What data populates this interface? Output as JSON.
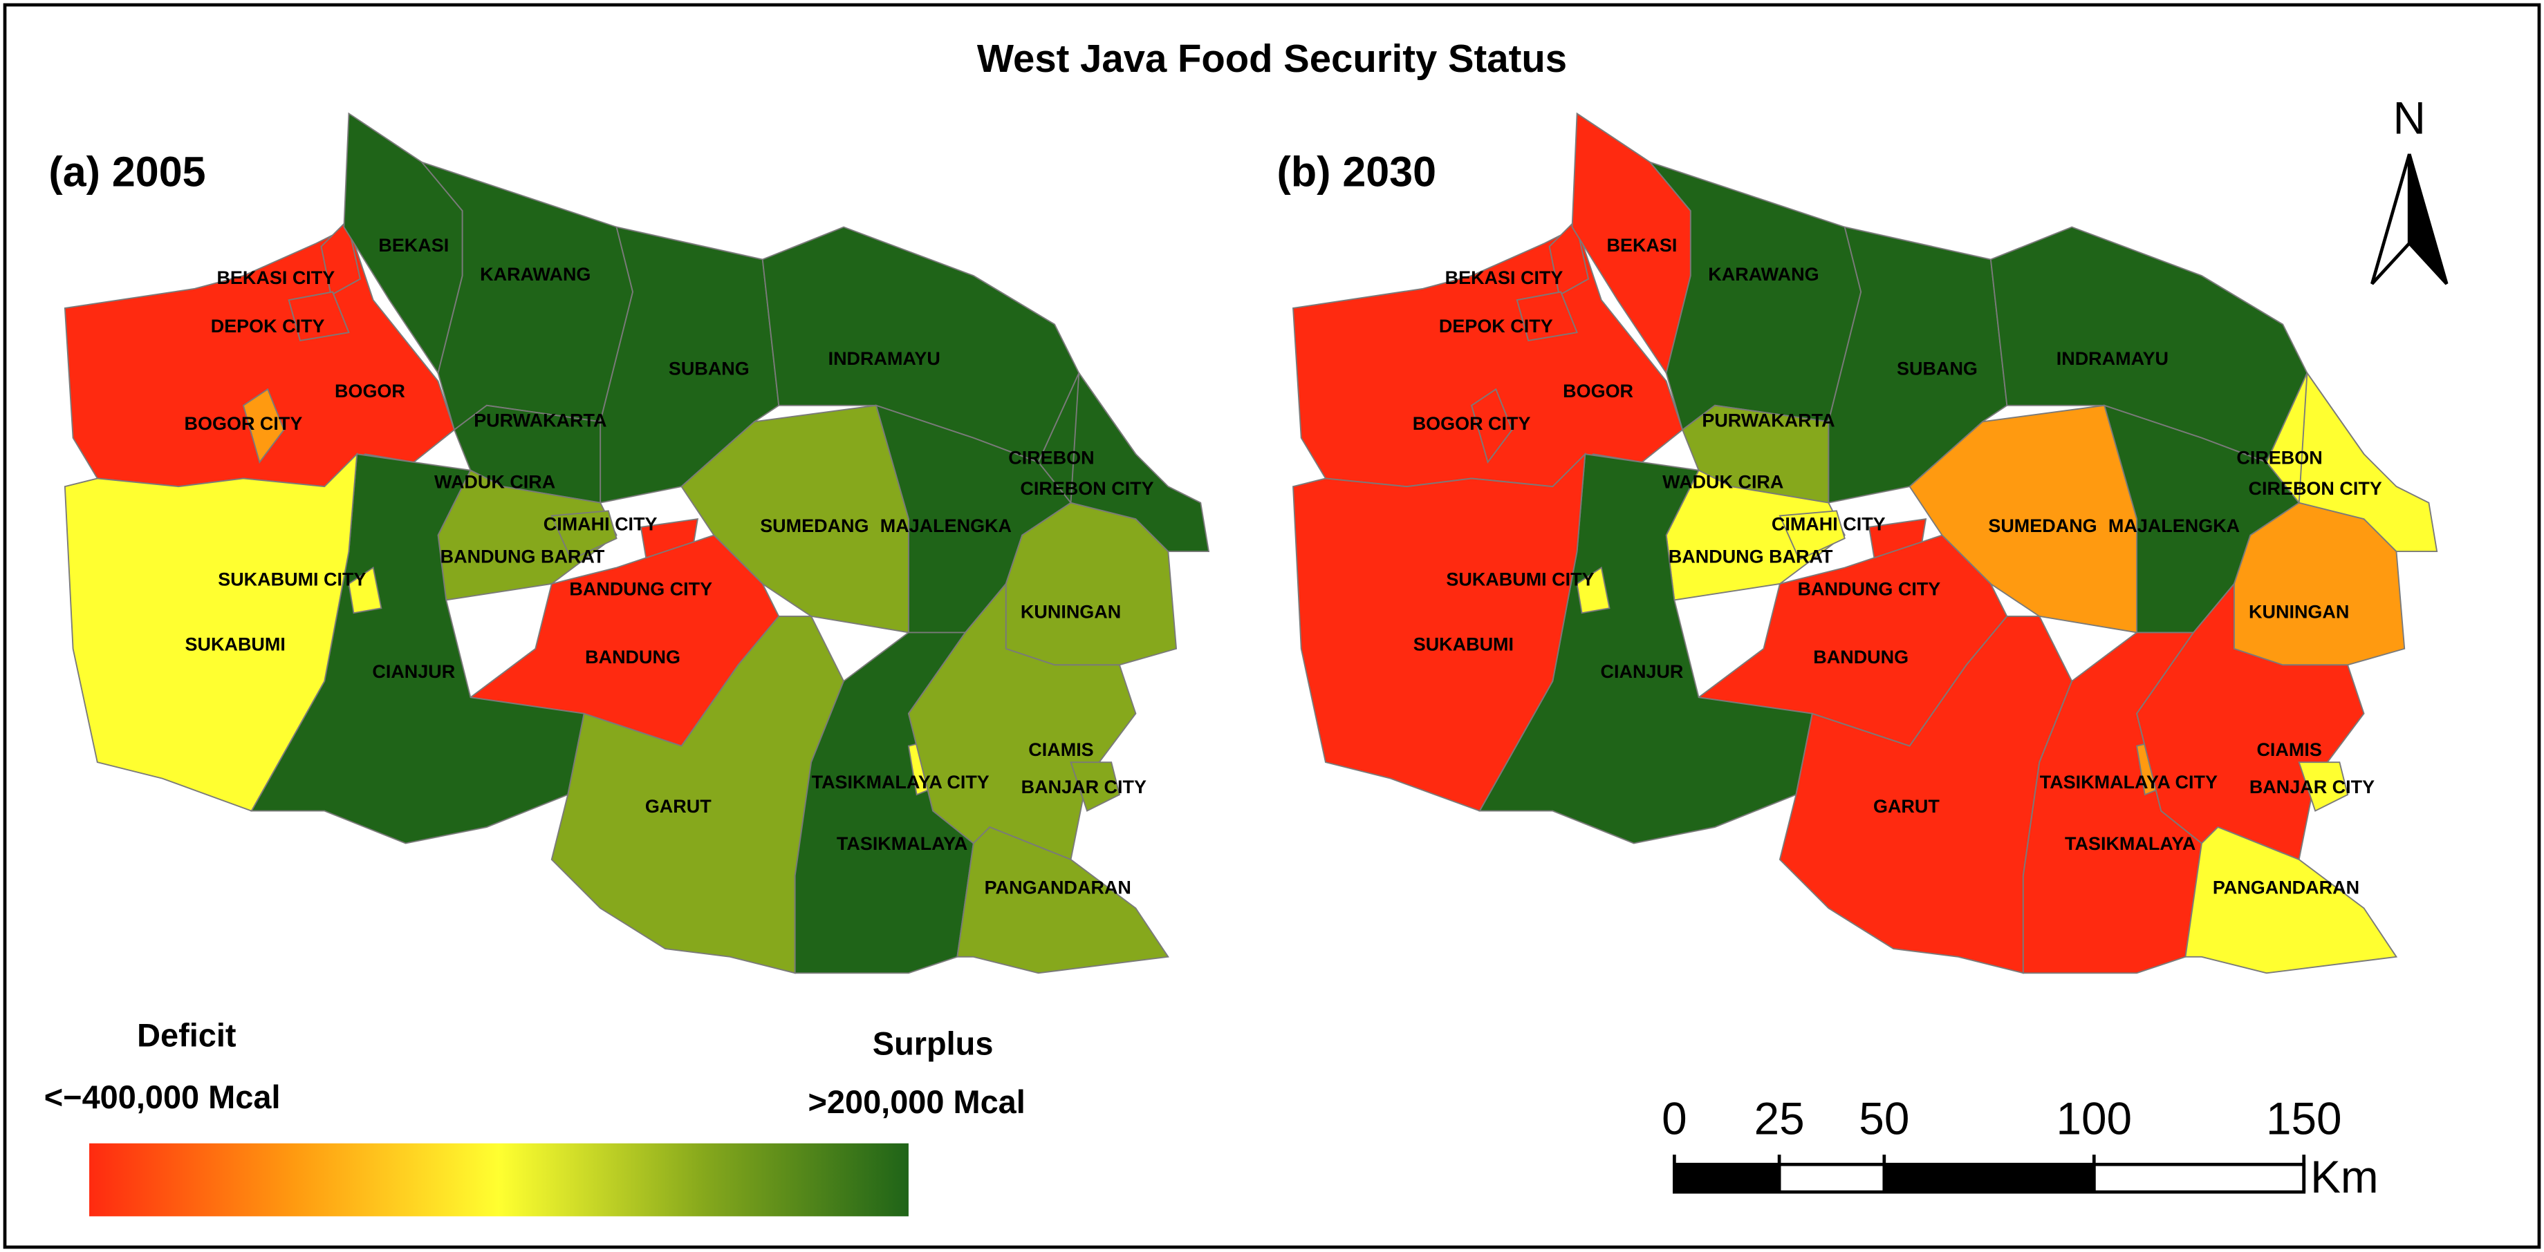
{
  "title": "West Java Food Security Status",
  "region_labels": [
    "BEKASI",
    "BEKASI CITY",
    "DEPOK CITY",
    "BOGOR",
    "BOGOR CITY",
    "KARAWANG",
    "PURWAKARTA",
    "SUBANG",
    "INDRAMAYU",
    "CIREBON",
    "CIREBON CITY",
    "WADUK CIRA",
    "CIMAHI CITY",
    "BANDUNG BARAT",
    "BANDUNG CITY",
    "SUMEDANG",
    "MAJALENGKA",
    "KUNINGAN",
    "SUKABUMI CITY",
    "SUKABUMI",
    "CIANJUR",
    "BANDUNG",
    "GARUT",
    "TASIKMALAYA CITY",
    "TASIKMALAYA",
    "CIAMIS",
    "BANJAR CITY",
    "PANGANDARAN"
  ],
  "panels": [
    {
      "title": "(a) 2005",
      "fills": [
        "#ff2a10",
        "#ff2a10",
        "#ff2a10",
        "#ff9a10",
        "#1f6418",
        "#1f6418",
        "#1f6418",
        "#1f6418",
        "#1f6418",
        "#1f6418",
        "#ffff30",
        "#1f6418",
        "#86a81c",
        "#86a81c",
        "#86a81c",
        "#ff2a10",
        "#ff2a10",
        "#1f6418",
        "#ffff30",
        "#ffff30",
        "#86a81c",
        "#1f6418",
        "#ffff30",
        "#86a81c",
        "#86a81c",
        "#86a81c",
        "#86a81c",
        "#1f6418"
      ]
    },
    {
      "title": "(b) 2030",
      "fills": [
        "#ff2a10",
        "#ff2a10",
        "#ff2a10",
        "#ff2a10",
        "#ff2a10",
        "#1f6418",
        "#1f6418",
        "#1f6418",
        "#86a81c",
        "#ffff30",
        "#ffff30",
        "#1f6418",
        "#ffff30",
        "#ffff30",
        "#ff9a10",
        "#ff2a10",
        "#ff2a10",
        "#1f6418",
        "#ff2a10",
        "#ffff30",
        "#ff2a10",
        "#ff2a10",
        "#ff9a10",
        "#ff9a10",
        "#ff2a10",
        "#ffff30",
        "#ffff30",
        "#ffff30"
      ]
    }
  ],
  "legend": {
    "low_label": "Deficit",
    "low_value": "<−400,000 Mcal",
    "high_label": "Surplus",
    "high_value": ">200,000 Mcal",
    "colors": [
      "#ff2a10",
      "#ff9a10",
      "#ffff30",
      "#86a81c",
      "#1f6418"
    ]
  },
  "north": "N",
  "scale_bar": {
    "ticks": [
      0,
      25,
      50,
      100,
      150
    ],
    "unit": "Km"
  }
}
